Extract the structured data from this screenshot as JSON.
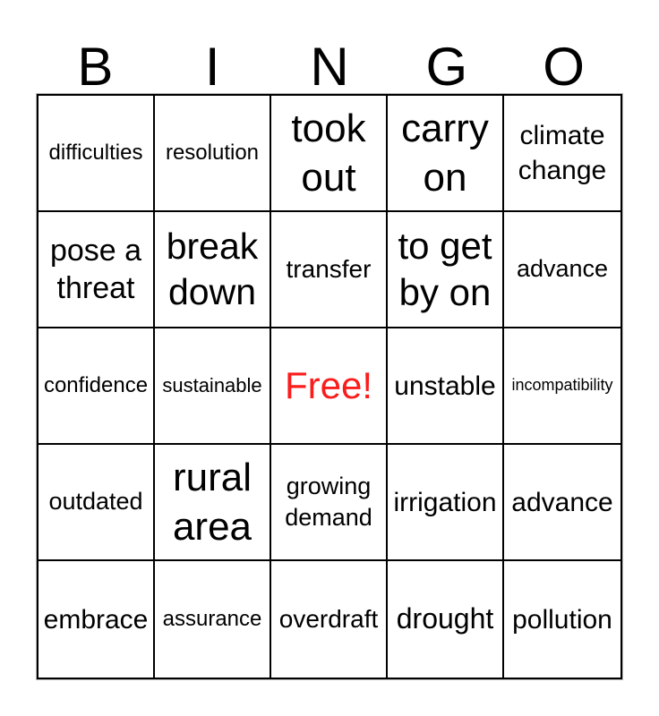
{
  "title": {
    "letters": [
      "B",
      "I",
      "N",
      "G",
      "O"
    ]
  },
  "colors": {
    "free": "#fb1c1c",
    "grid_line": "#000000",
    "text": "#000000",
    "background": "#ffffff"
  },
  "grid": {
    "rows": 5,
    "cols": 5,
    "free_cell_index": 12,
    "cells": [
      {
        "text": "difficulties"
      },
      {
        "text": "resolution"
      },
      {
        "text": "took out"
      },
      {
        "text": "carry on"
      },
      {
        "text": "climate change"
      },
      {
        "text": "pose a threat"
      },
      {
        "text": "break down"
      },
      {
        "text": "transfer"
      },
      {
        "text": "to get by on"
      },
      {
        "text": "advance"
      },
      {
        "text": "confidence"
      },
      {
        "text": "sustainable"
      },
      {
        "text": "Free!"
      },
      {
        "text": "unstable"
      },
      {
        "text": "incompatibility"
      },
      {
        "text": "outdated"
      },
      {
        "text": "rural area"
      },
      {
        "text": "growing demand"
      },
      {
        "text": "irrigation"
      },
      {
        "text": "advance"
      },
      {
        "text": "embrace"
      },
      {
        "text": "assurance"
      },
      {
        "text": "overdraft"
      },
      {
        "text": "drought"
      },
      {
        "text": "pollution"
      }
    ]
  }
}
